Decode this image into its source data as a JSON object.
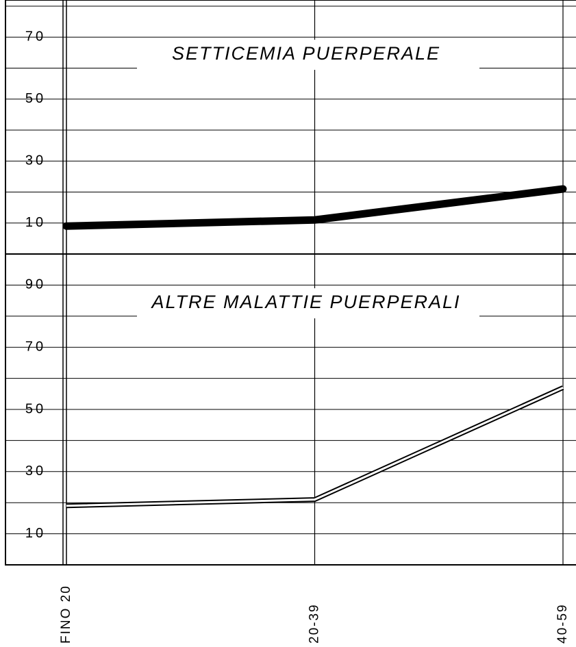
{
  "chart_data": [
    {
      "type": "line",
      "title": "SETTICEMIA PUERPERALE",
      "series": [
        {
          "name": null,
          "color": "#000000",
          "style": "solid",
          "values": [
            9,
            11,
            21
          ]
        }
      ],
      "ylim": [
        0,
        82
      ],
      "yticks": [
        10,
        30,
        50,
        70
      ],
      "minor_yticks": [
        20,
        40,
        60,
        80
      ],
      "grid": true
    },
    {
      "type": "line",
      "title": "ALTRE MALATTIE PUERPERALI",
      "categories": [
        "FINO 20",
        "20-39",
        "40-59"
      ],
      "series": [
        {
          "name": null,
          "color": "#000000",
          "style": "double",
          "values": [
            19,
            21,
            57
          ]
        }
      ],
      "ylim": [
        0,
        100
      ],
      "yticks": [
        10,
        30,
        50,
        70,
        90
      ],
      "minor_yticks": [
        20,
        40,
        60,
        80
      ],
      "grid": true
    }
  ]
}
